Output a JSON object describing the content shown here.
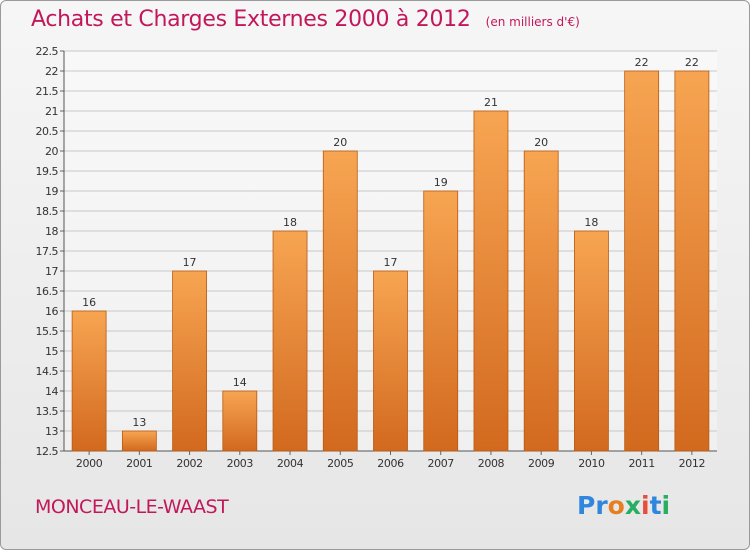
{
  "header": {
    "title": "Achats et Charges Externes 2000 à 2012",
    "unit": "(en milliers d'€)"
  },
  "footer": {
    "location": "MONCEAU-LE-WAAST",
    "logo_text": "Proxiti"
  },
  "colors": {
    "title": "#c2185b",
    "bar_light": "#f7a552",
    "bar_dark": "#d2691e",
    "grid": "#c8c8c8",
    "logo": [
      "#2e86de",
      "#2e86de",
      "#e67e22",
      "#27ae60",
      "#e74c3c",
      "#2e86de",
      "#27ae60"
    ]
  },
  "chart_data": {
    "type": "bar",
    "title": "Achats et Charges Externes 2000 à 2012",
    "subtitle": "(en milliers d'€)",
    "xlabel": "",
    "ylabel": "",
    "ylim": [
      12.5,
      22.5
    ],
    "ytick_step": 0.5,
    "yticks": [
      "12.5",
      "13",
      "13.5",
      "14",
      "14.5",
      "15",
      "15.5",
      "16",
      "16.5",
      "17",
      "17.5",
      "18",
      "18.5",
      "19",
      "19.5",
      "20",
      "20.5",
      "21",
      "21.5",
      "22",
      "22.5"
    ],
    "categories": [
      "2000",
      "2001",
      "2002",
      "2003",
      "2004",
      "2005",
      "2006",
      "2007",
      "2008",
      "2009",
      "2010",
      "2011",
      "2012"
    ],
    "values": [
      16,
      13,
      17,
      14,
      18,
      20,
      17,
      19,
      21,
      20,
      18,
      22,
      22
    ],
    "data_labels": [
      "16",
      "13",
      "17",
      "14",
      "18",
      "20",
      "17",
      "19",
      "21",
      "20",
      "18",
      "22",
      "22"
    ],
    "grid": true,
    "legend": "none"
  }
}
